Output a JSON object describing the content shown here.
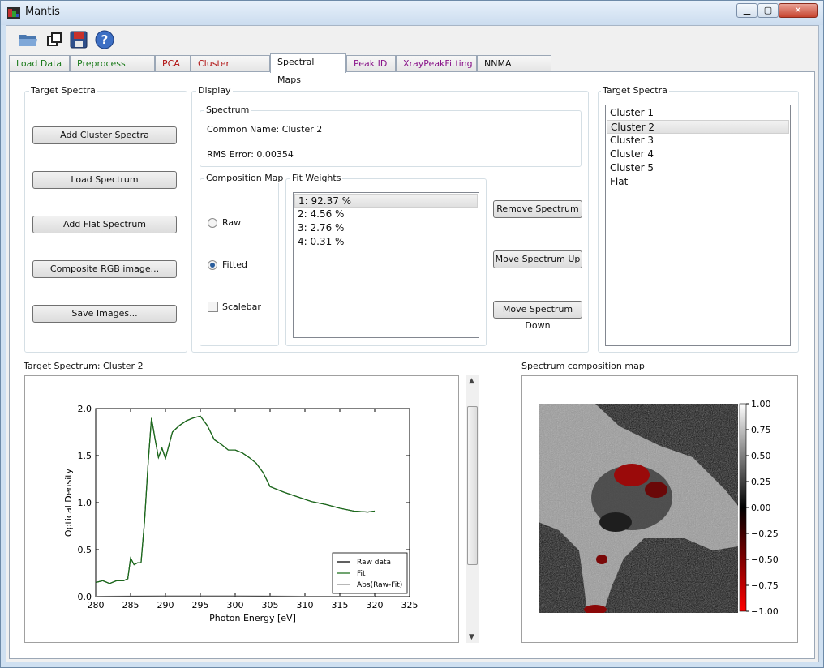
{
  "window": {
    "title": "Mantis",
    "controls": [
      "minimize",
      "maximize",
      "close"
    ]
  },
  "toolbar": {
    "icons": [
      "open-folder-icon",
      "copy-icon",
      "save-icon",
      "help-icon"
    ]
  },
  "tabs": [
    {
      "label": "Load Data",
      "color": "#1a7a1a"
    },
    {
      "label": "Preprocess Data",
      "color": "#1a7a1a"
    },
    {
      "label": "PCA",
      "color": "#b01010"
    },
    {
      "label": "Cluster Analysis",
      "color": "#b01010"
    },
    {
      "label": "Spectral Maps",
      "color": "#111111"
    },
    {
      "label": "Peak ID",
      "color": "#8a168a"
    },
    {
      "label": "XrayPeakFitting",
      "color": "#8a168a"
    },
    {
      "label": "NNMA Analysis",
      "color": "#111111"
    }
  ],
  "left_panel": {
    "title": "Target Spectra",
    "buttons": [
      "Add Cluster Spectra",
      "Load Spectrum",
      "Add Flat Spectrum",
      "Composite RGB image...",
      "Save Images..."
    ]
  },
  "display": {
    "title": "Display",
    "spectrum": {
      "title": "Spectrum",
      "common_name": "Common Name: Cluster 2",
      "rms_error": "RMS Error: 0.00354"
    },
    "composition_map": {
      "title": "Composition Map",
      "raw_label": "Raw",
      "fitted_label": "Fitted",
      "scalebar_label": "Scalebar",
      "selected": "Fitted",
      "scalebar_checked": false
    },
    "fit_weights": {
      "title": "Fit Weights",
      "items": [
        "1: 92.37 %",
        "2:  4.56 %",
        "3:  2.76 %",
        "4:  0.31 %"
      ],
      "selected_index": 0
    },
    "buttons": [
      "Remove Spectrum",
      "Move Spectrum Up",
      "Move Spectrum Down"
    ]
  },
  "right_panel": {
    "title": "Target Spectra",
    "items": [
      "Cluster 1",
      "Cluster 2",
      "Cluster 3",
      "Cluster 4",
      "Cluster 5",
      "Flat"
    ],
    "selected_index": 1
  },
  "spectrum_plot": {
    "title": "Target Spectrum: Cluster 2",
    "chart_data": {
      "type": "line",
      "xlabel": "Photon Energy [eV]",
      "ylabel": "Optical Density",
      "xlim": [
        280,
        325
      ],
      "ylim": [
        0,
        2.0
      ],
      "xticks": [
        "280",
        "285",
        "290",
        "295",
        "300",
        "305",
        "310",
        "315",
        "320",
        "325"
      ],
      "yticks": [
        "0.0",
        "0.5",
        "1.0",
        "1.5",
        "2.0"
      ],
      "legend_position": "lower-right",
      "series": [
        {
          "name": "Raw data",
          "color": "#000000",
          "x": [
            280,
            281,
            282,
            283,
            284,
            284.6,
            285,
            285.5,
            286,
            286.5,
            287,
            287.5,
            288,
            288.5,
            289,
            289.5,
            290,
            291,
            292,
            293,
            294,
            295,
            296,
            297,
            298,
            299,
            300,
            301,
            302,
            303,
            304,
            305,
            307,
            309,
            311,
            313,
            315,
            317,
            319,
            320
          ],
          "y": [
            0.15,
            0.17,
            0.14,
            0.17,
            0.17,
            0.19,
            0.41,
            0.34,
            0.36,
            0.36,
            0.8,
            1.4,
            1.9,
            1.68,
            1.48,
            1.58,
            1.47,
            1.75,
            1.82,
            1.87,
            1.9,
            1.92,
            1.82,
            1.67,
            1.62,
            1.56,
            1.56,
            1.53,
            1.48,
            1.42,
            1.32,
            1.17,
            1.11,
            1.06,
            1.01,
            0.98,
            0.94,
            0.91,
            0.9,
            0.91
          ]
        },
        {
          "name": "Fit",
          "color": "#1a6e1a",
          "x": [
            280,
            281,
            282,
            283,
            284,
            284.6,
            285,
            285.5,
            286,
            286.5,
            287,
            287.5,
            288,
            288.5,
            289,
            289.5,
            290,
            291,
            292,
            293,
            294,
            295,
            296,
            297,
            298,
            299,
            300,
            301,
            302,
            303,
            304,
            305,
            307,
            309,
            311,
            313,
            315,
            317,
            319,
            320
          ],
          "y": [
            0.15,
            0.17,
            0.14,
            0.17,
            0.17,
            0.19,
            0.41,
            0.34,
            0.36,
            0.36,
            0.8,
            1.4,
            1.9,
            1.68,
            1.48,
            1.58,
            1.47,
            1.75,
            1.82,
            1.87,
            1.9,
            1.92,
            1.82,
            1.67,
            1.62,
            1.56,
            1.56,
            1.53,
            1.48,
            1.42,
            1.32,
            1.17,
            1.11,
            1.06,
            1.01,
            0.98,
            0.94,
            0.91,
            0.9,
            0.91
          ]
        },
        {
          "name": "Abs(Raw-Fit)",
          "color": "#8c8c8c",
          "x": [
            280,
            290,
            300,
            310,
            320
          ],
          "y": [
            0.005,
            0.01,
            0.01,
            0.005,
            0.005
          ]
        }
      ]
    }
  },
  "composition_map": {
    "title": "Spectrum composition map",
    "colorbar_ticks": [
      "1.00",
      "0.75",
      "0.50",
      "0.25",
      "0.00",
      "−0.25",
      "−0.50",
      "−0.75",
      "−1.00"
    ]
  }
}
